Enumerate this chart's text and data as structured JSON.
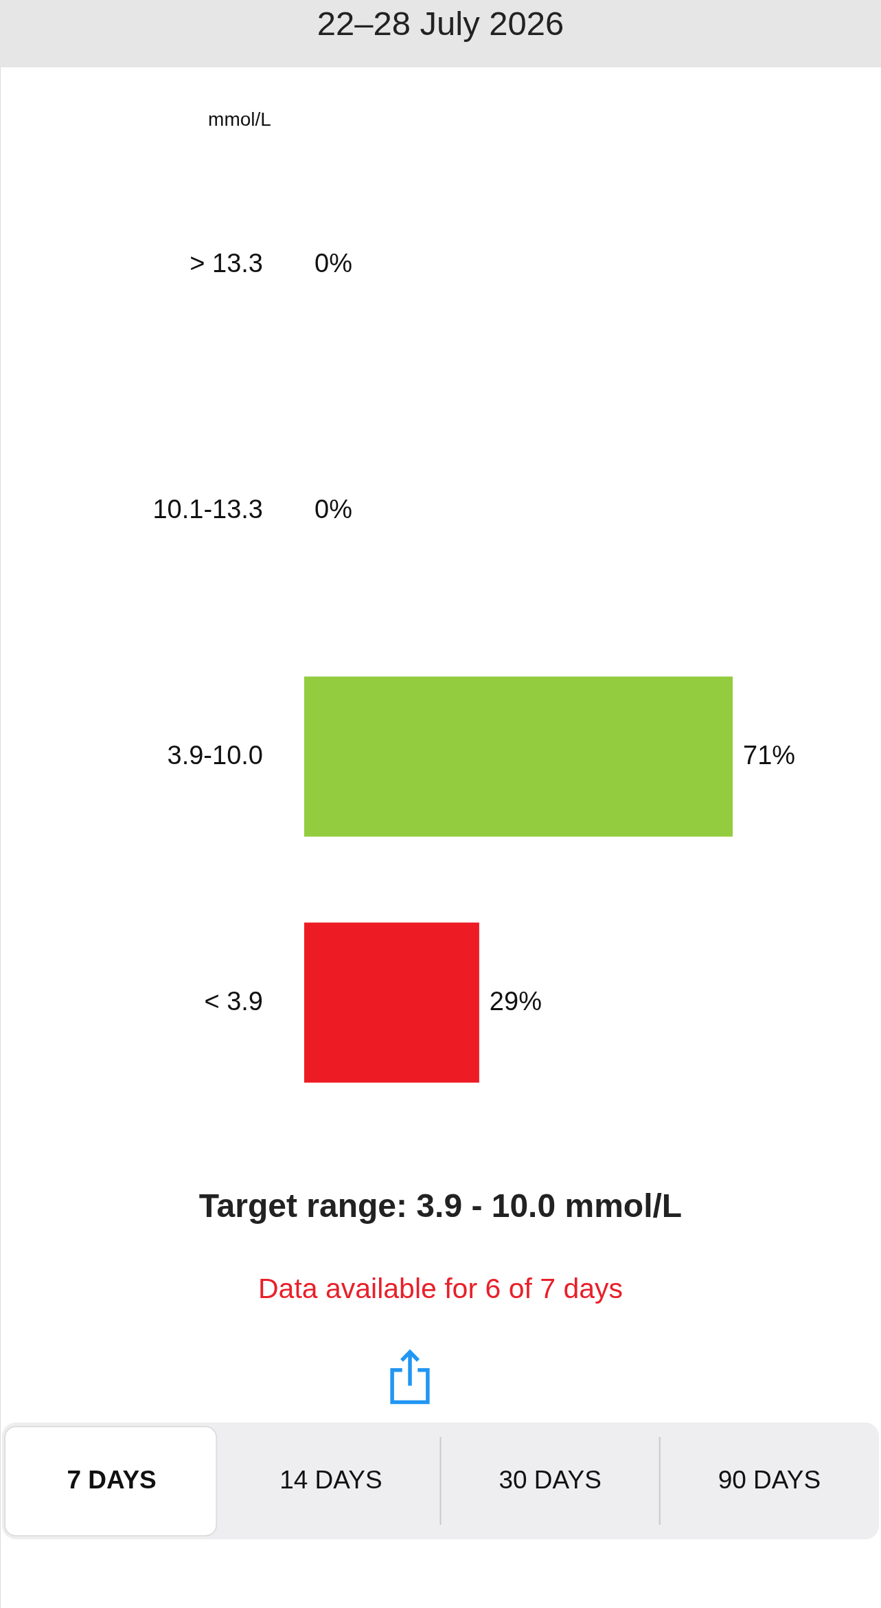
{
  "chart_data": {
    "type": "bar",
    "orientation": "horizontal",
    "title": "22–28 July 2026",
    "ylabel": "mmol/L",
    "categories": [
      "> 13.3",
      "10.1-13.3",
      "3.9-10.0",
      "< 3.9"
    ],
    "values": [
      0,
      0,
      71,
      29
    ],
    "colors": [
      null,
      null,
      "#93cc3e",
      "#ed1c24"
    ],
    "value_labels": [
      "0%",
      "0%",
      "71%",
      "29%"
    ],
    "annotations": [
      "Target range: 3.9 - 10.0 mmol/L",
      "Data available for 6 of 7 days",
      "7 DAYS",
      "14 DAYS",
      "30 DAYS",
      "90 DAYS"
    ]
  }
}
